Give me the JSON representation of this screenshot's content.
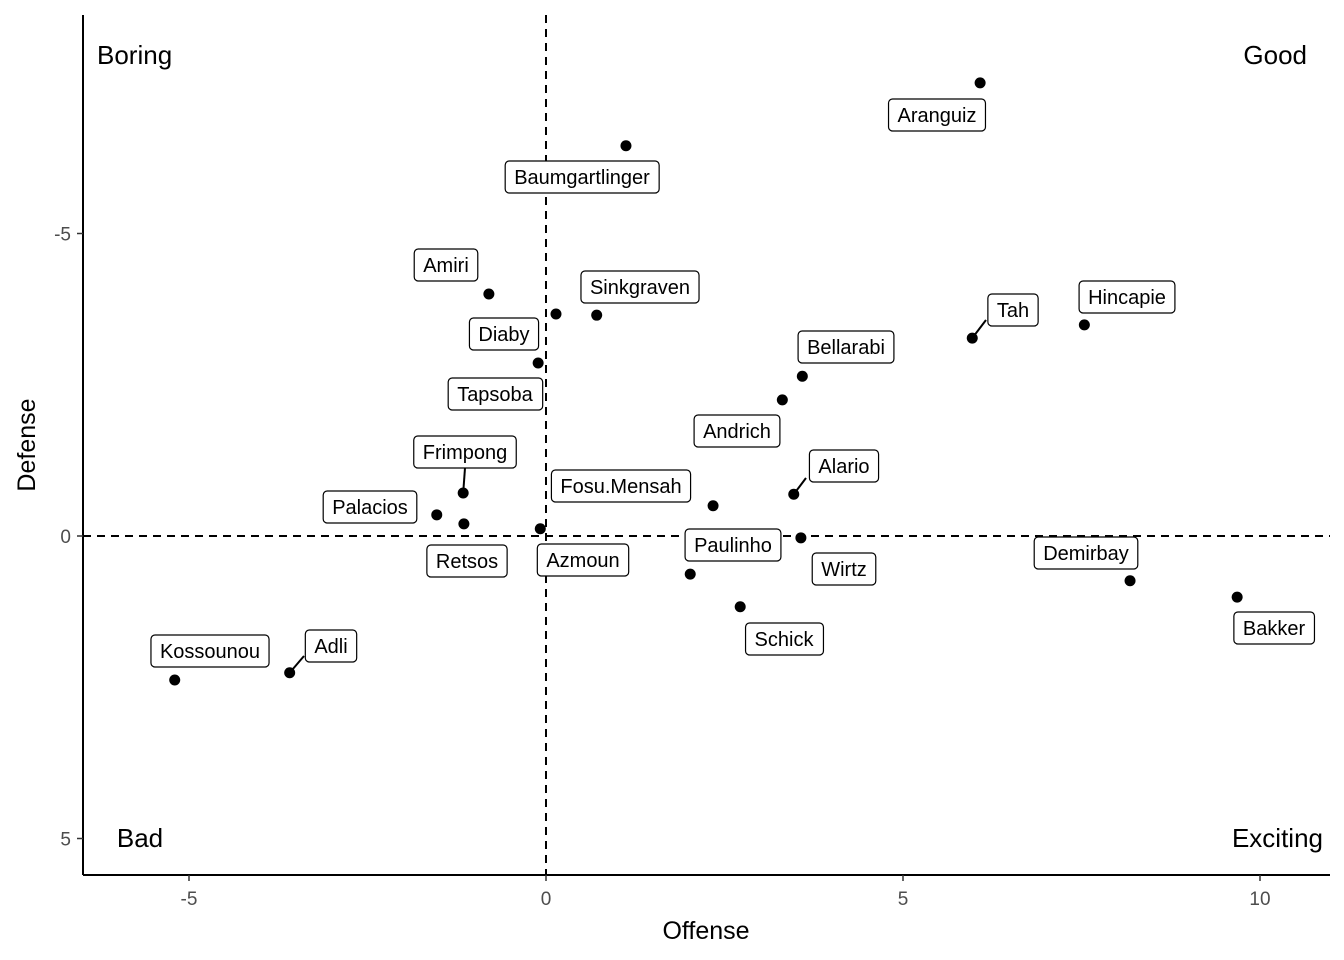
{
  "chart_data": {
    "type": "scatter",
    "xlabel": "Offense",
    "ylabel": "Defense",
    "xlim": [
      -6.4,
      10.8
    ],
    "ylim": [
      -8.5,
      5.6
    ],
    "y_reversed": true,
    "xticks": [
      -5,
      0,
      5,
      10
    ],
    "yticks": [
      -5,
      0,
      5
    ],
    "xtick_labels": [
      "-5",
      "0",
      "5",
      "10"
    ],
    "ytick_labels": [
      "-5",
      "0",
      "5"
    ],
    "reference_lines": {
      "x": 0,
      "y": 0,
      "style": "dashed"
    },
    "quadrant_labels": {
      "top_left": "Boring",
      "top_right": "Good",
      "bottom_left": "Bad",
      "bottom_right": "Exciting"
    },
    "grid": false,
    "points": [
      {
        "name": "Aranguiz",
        "x": 6.08,
        "y": -7.49
      },
      {
        "name": "Baumgartlinger",
        "x": 1.12,
        "y": -6.45
      },
      {
        "name": "Amiri",
        "x": -0.8,
        "y": -4.0
      },
      {
        "name": "Sinkgraven",
        "x": 0.71,
        "y": -3.65
      },
      {
        "name": "Diaby",
        "x": 0.14,
        "y": -3.67
      },
      {
        "name": "Tapsoba",
        "x": -0.11,
        "y": -2.86
      },
      {
        "name": "Tah",
        "x": 5.97,
        "y": -3.27
      },
      {
        "name": "Hincapie",
        "x": 7.54,
        "y": -3.49
      },
      {
        "name": "Bellarabi",
        "x": 3.59,
        "y": -2.64
      },
      {
        "name": "Andrich",
        "x": 3.31,
        "y": -2.25
      },
      {
        "name": "Alario",
        "x": 3.47,
        "y": -0.69
      },
      {
        "name": "Frimpong",
        "x": -1.16,
        "y": -0.71
      },
      {
        "name": "Palacios",
        "x": -1.53,
        "y": -0.35
      },
      {
        "name": "Retsos",
        "x": -1.15,
        "y": -0.2
      },
      {
        "name": "Fosu.Mensah",
        "x": 2.34,
        "y": -0.5
      },
      {
        "name": "Azmoun",
        "x": -0.08,
        "y": -0.12
      },
      {
        "name": "Paulinho",
        "x": 2.02,
        "y": 0.63
      },
      {
        "name": "Wirtz",
        "x": 3.57,
        "y": 0.03
      },
      {
        "name": "Schick",
        "x": 2.72,
        "y": 1.17
      },
      {
        "name": "Demirbay",
        "x": 8.18,
        "y": 0.74
      },
      {
        "name": "Bakker",
        "x": 9.68,
        "y": 1.01
      },
      {
        "name": "Kossounou",
        "x": -5.2,
        "y": 2.38
      },
      {
        "name": "Adli",
        "x": -3.59,
        "y": 2.26
      }
    ]
  }
}
